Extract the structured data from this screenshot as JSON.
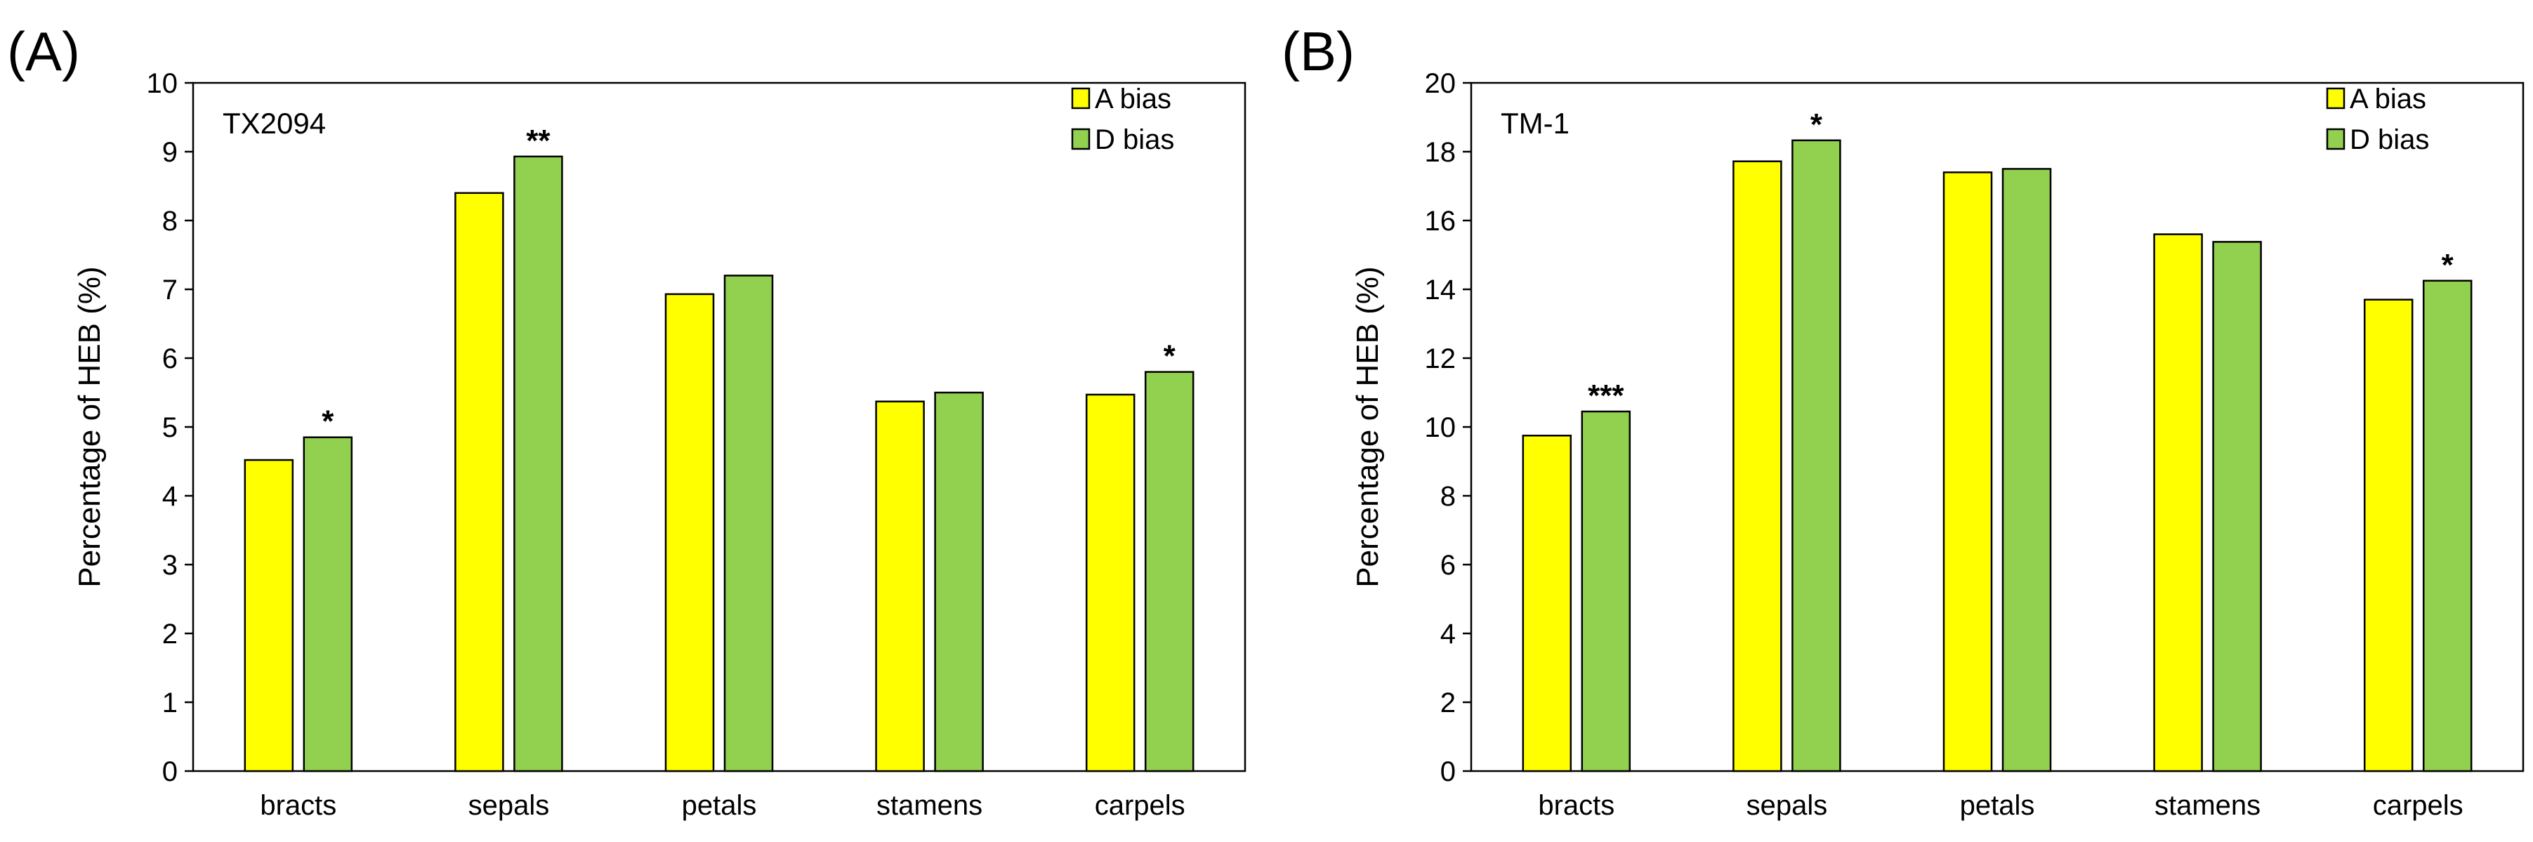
{
  "chart_data": [
    {
      "type": "bar",
      "panel_label": "(A)",
      "title": "TX2094",
      "xlabel": "",
      "ylabel": "Percentage of HEB (%)",
      "ylim": [
        0,
        10
      ],
      "ytick_step": 1,
      "categories": [
        "bracts",
        "sepals",
        "petals",
        "stamens",
        "carpels"
      ],
      "series": [
        {
          "name": "A bias",
          "color": "#FFFF00",
          "values": [
            4.52,
            8.4,
            6.93,
            5.37,
            5.47
          ]
        },
        {
          "name": "D bias",
          "color": "#92D050",
          "values": [
            4.85,
            8.93,
            7.2,
            5.5,
            5.8
          ]
        }
      ],
      "annotations": [
        "*",
        "**",
        "",
        "",
        "*"
      ],
      "legend": "top-right",
      "grid": false
    },
    {
      "type": "bar",
      "panel_label": "(B)",
      "title": "TM-1",
      "xlabel": "",
      "ylabel": "Percentage of HEB (%)",
      "ylim": [
        0,
        20
      ],
      "ytick_step": 2,
      "categories": [
        "bracts",
        "sepals",
        "petals",
        "stamens",
        "carpels"
      ],
      "series": [
        {
          "name": "A bias",
          "color": "#FFFF00",
          "values": [
            9.75,
            17.72,
            17.4,
            15.6,
            13.7
          ]
        },
        {
          "name": "D bias",
          "color": "#92D050",
          "values": [
            10.45,
            18.33,
            17.5,
            15.38,
            14.25
          ]
        }
      ],
      "annotations": [
        "***",
        "*",
        "",
        "",
        "*"
      ],
      "legend": "top-right",
      "grid": false
    }
  ]
}
